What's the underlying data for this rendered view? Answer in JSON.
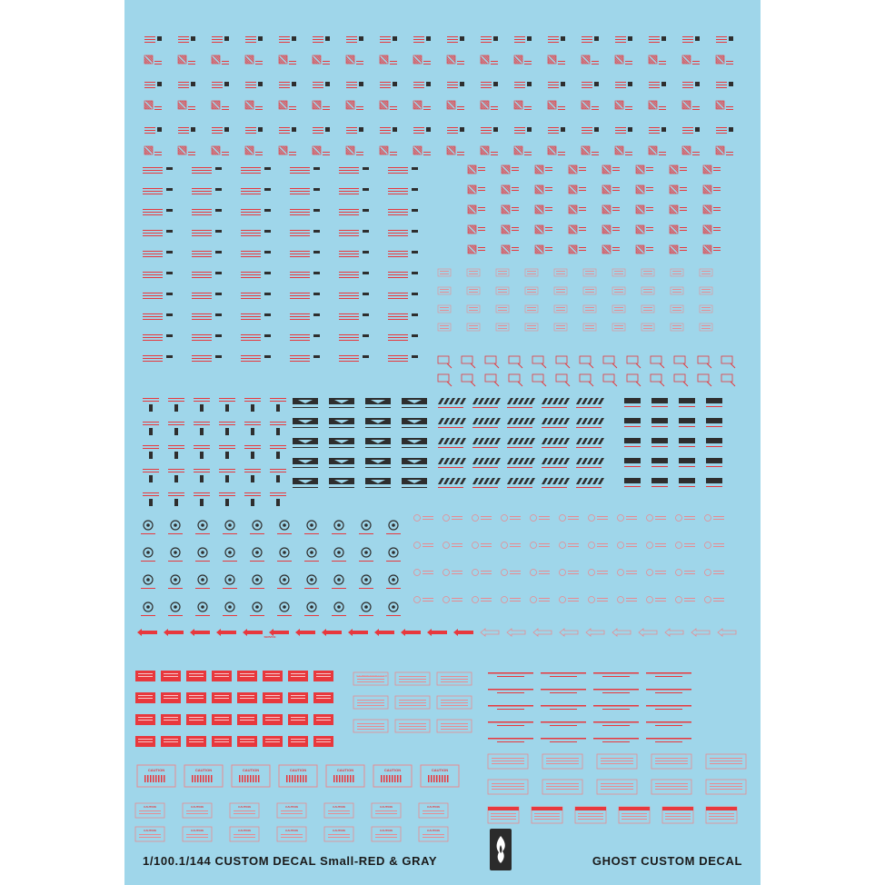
{
  "sheet": {
    "footer_left": "1/100.1/144 CUSTOM DECAL Small-RED & GRAY",
    "footer_right": "GHOST CUSTOM DECAL",
    "logo_icon": "flame-logo-icon"
  },
  "markings": {
    "service": "SERVICE",
    "caution": "CAUTION",
    "caution_keep_clear": "CAUTION KEEP CLEAR"
  },
  "colors": {
    "background": "#9fd6ea",
    "red": "#e8383d",
    "gray": "#2e2e2e",
    "pink": "#e98a90"
  }
}
